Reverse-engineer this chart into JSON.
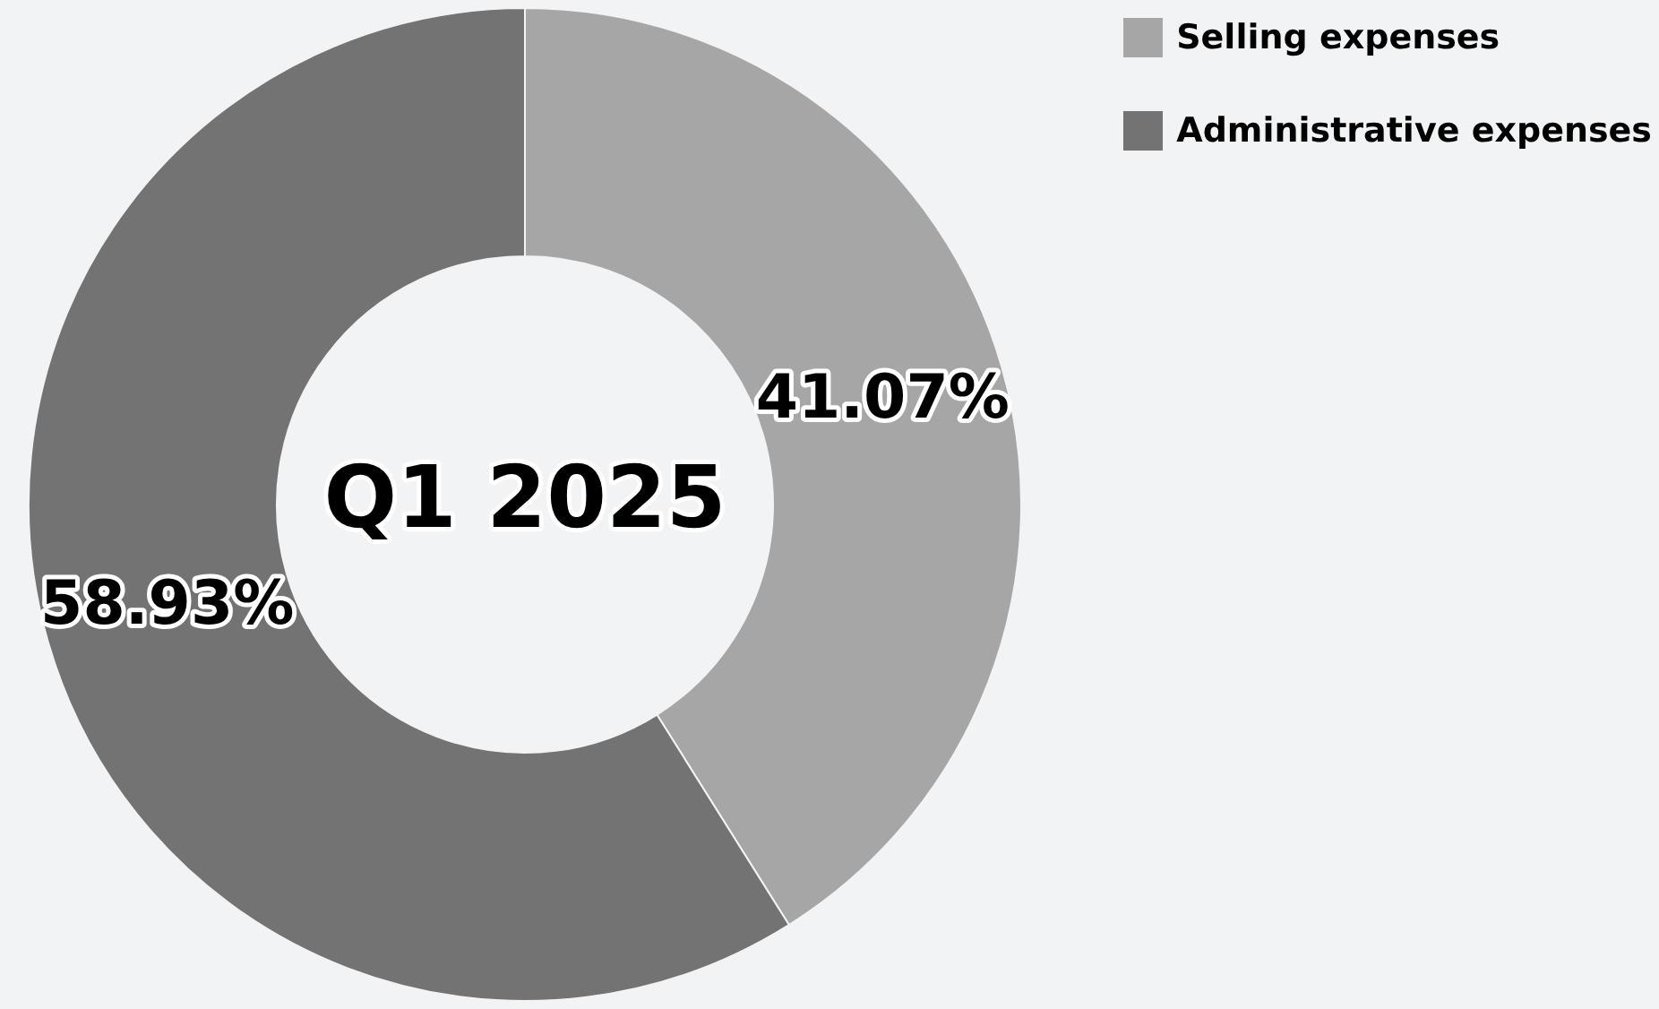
{
  "chart_data": {
    "type": "donut",
    "title": "Q1 2025",
    "categories": [
      "Selling expenses",
      "Administrative expenses"
    ],
    "values": [
      41.07,
      58.93
    ],
    "colors": [
      "#a6a6a6",
      "#737373"
    ],
    "value_labels": [
      "41.07%",
      "58.93%"
    ],
    "legend": "top right"
  }
}
